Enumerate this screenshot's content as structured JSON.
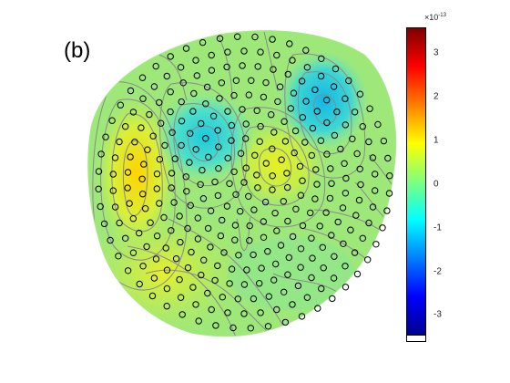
{
  "panel": {
    "label": "(b)"
  },
  "colorbar": {
    "exponent_base": "×10",
    "exponent_power": "-13",
    "ticks": [
      "3",
      "2",
      "1",
      "0",
      "-1",
      "-2",
      "-3"
    ],
    "range": [
      -3.6,
      3.6
    ],
    "colormap": "jet"
  },
  "map": {
    "sensor_marker": "open-circle",
    "contours": "gray"
  }
}
